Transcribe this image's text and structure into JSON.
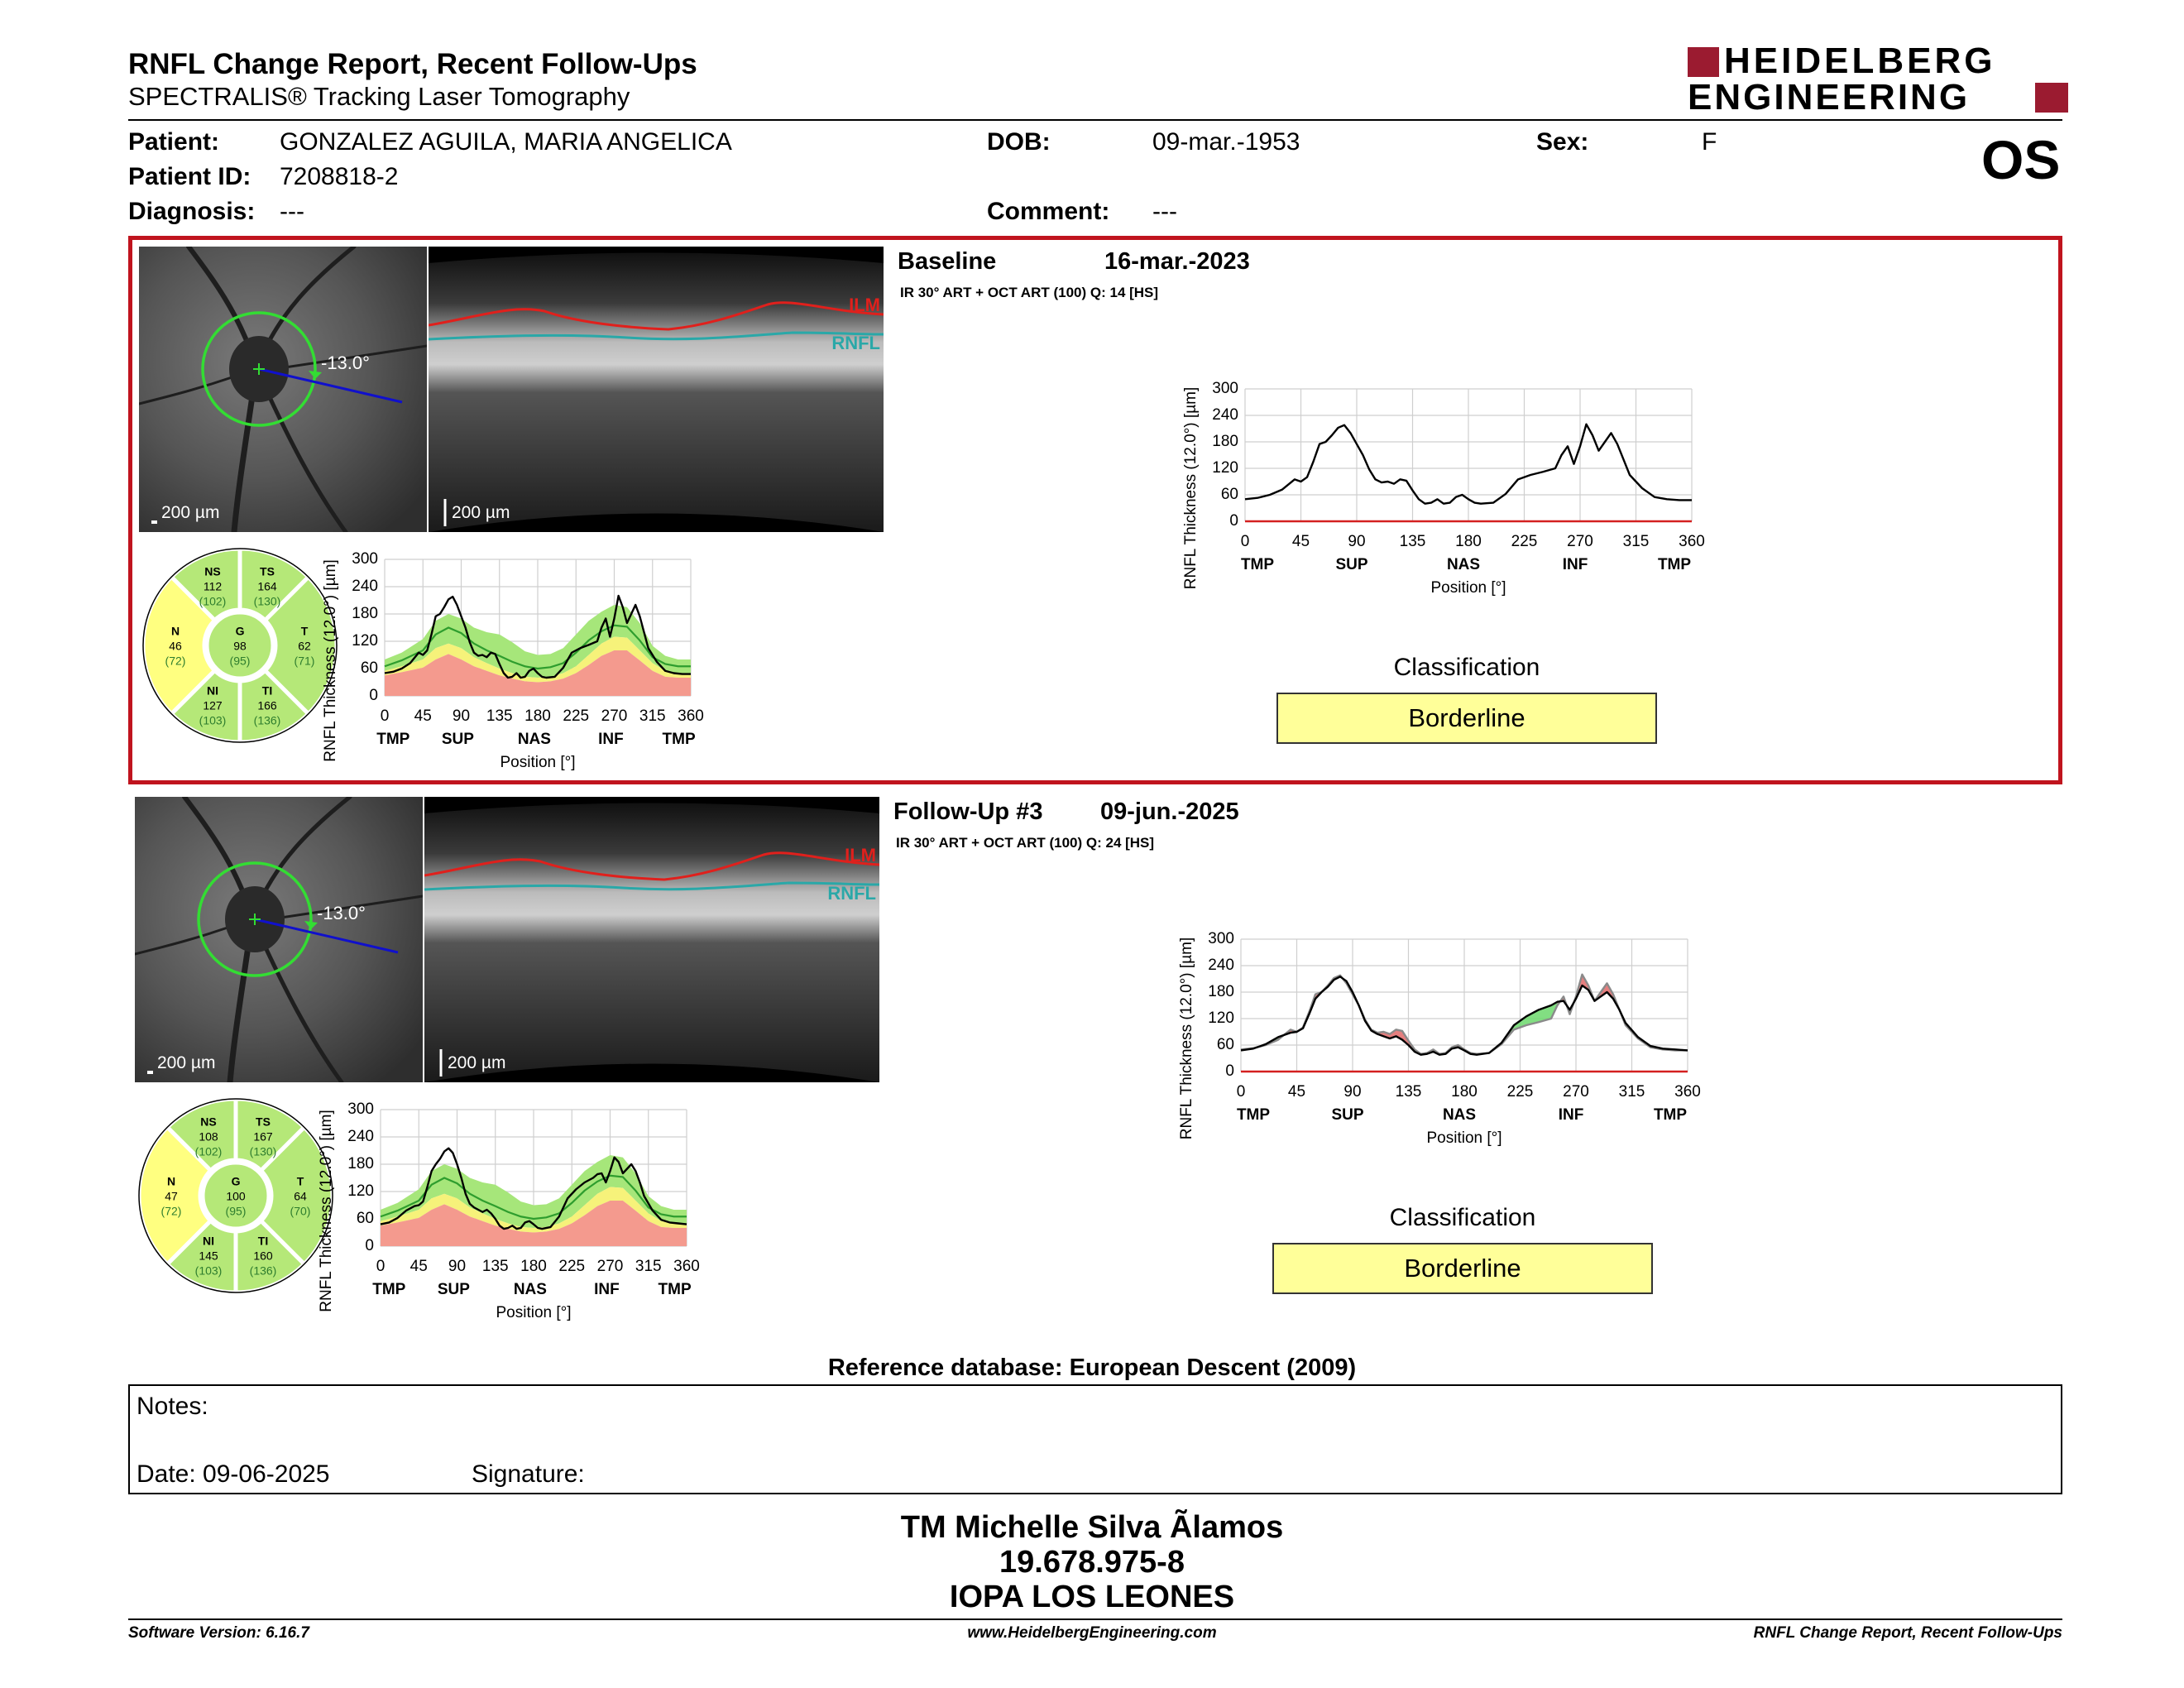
{
  "header": {
    "title": "RNFL Change Report, Recent Follow-Ups",
    "subtitle": "SPECTRALIS® Tracking Laser Tomography",
    "logo_line1": "HEIDELBERG",
    "logo_line2": "ENGINEERING",
    "eye": "OS"
  },
  "patient": {
    "patient_label": "Patient:",
    "patient_value": "GONZALEZ AGUILA, MARIA ANGELICA",
    "dob_label": "DOB:",
    "dob_value": "09-mar.-1953",
    "sex_label": "Sex:",
    "sex_value": "F",
    "id_label": "Patient ID:",
    "id_value": "7208818-2",
    "diagnosis_label": "Diagnosis:",
    "diagnosis_value": "---",
    "comment_label": "Comment:",
    "comment_value": "---"
  },
  "exams": [
    {
      "label": "Baseline",
      "date": "16-mar.-2023",
      "info": "IR 30° ART + OCT ART (100) Q: 14 [HS]",
      "angle": "-13.0°",
      "scale_fundus": "200 µm",
      "scale_bscan": "200 µm",
      "ilm": "ILM",
      "rnfl": "RNFL",
      "sectors": {
        "NS": {
          "label": "NS",
          "value": "112",
          "ref": "(102)"
        },
        "TS": {
          "label": "TS",
          "value": "164",
          "ref": "(130)"
        },
        "N": {
          "label": "N",
          "value": "46",
          "ref": "(72)"
        },
        "G": {
          "label": "G",
          "value": "98",
          "ref": "(95)"
        },
        "T": {
          "label": "T",
          "value": "62",
          "ref": "(71)"
        },
        "NI": {
          "label": "NI",
          "value": "127",
          "ref": "(103)"
        },
        "TI": {
          "label": "TI",
          "value": "166",
          "ref": "(136)"
        }
      },
      "classification_title": "Classification",
      "classification": "Borderline",
      "classification_color": "#ffff99"
    },
    {
      "label": "Follow-Up #3",
      "date": "09-jun.-2025",
      "info": "IR 30° ART + OCT ART (100) Q: 24 [HS]",
      "angle": "-13.0°",
      "scale_fundus": "200 µm",
      "scale_bscan": "200 µm",
      "ilm": "ILM",
      "rnfl": "RNFL",
      "sectors": {
        "NS": {
          "label": "NS",
          "value": "108",
          "ref": "(102)"
        },
        "TS": {
          "label": "TS",
          "value": "167",
          "ref": "(130)"
        },
        "N": {
          "label": "N",
          "value": "47",
          "ref": "(72)"
        },
        "G": {
          "label": "G",
          "value": "100",
          "ref": "(95)"
        },
        "T": {
          "label": "T",
          "value": "64",
          "ref": "(70)"
        },
        "NI": {
          "label": "NI",
          "value": "145",
          "ref": "(103)"
        },
        "TI": {
          "label": "TI",
          "value": "160",
          "ref": "(136)"
        }
      },
      "classification_title": "Classification",
      "classification": "Borderline",
      "classification_color": "#ffff99"
    }
  ],
  "chart_data": {
    "type": "line",
    "ylabel": "RNFL Thickness (12.0°) [µm]",
    "xlabel": "Position [°]",
    "xlim": [
      0,
      360
    ],
    "ylim": [
      0,
      300
    ],
    "xticks": [
      0,
      45,
      90,
      135,
      180,
      225,
      270,
      315,
      360
    ],
    "yticks": [
      0,
      60,
      120,
      180,
      240,
      300
    ],
    "region_labels": [
      "TMP",
      "SUP",
      "NAS",
      "INF",
      "TMP"
    ],
    "region_positions": [
      10,
      86,
      176,
      266,
      346
    ],
    "norm_bands": {
      "x": [
        0,
        20,
        45,
        60,
        75,
        90,
        105,
        120,
        135,
        150,
        165,
        180,
        195,
        210,
        225,
        240,
        255,
        270,
        285,
        300,
        315,
        330,
        345,
        360
      ],
      "red": [
        45,
        52,
        62,
        80,
        92,
        80,
        65,
        55,
        45,
        38,
        32,
        30,
        32,
        38,
        50,
        68,
        88,
        100,
        100,
        78,
        55,
        42,
        40,
        40
      ],
      "yellow": [
        55,
        65,
        80,
        105,
        115,
        105,
        85,
        72,
        60,
        50,
        42,
        40,
        42,
        50,
        65,
        90,
        115,
        130,
        128,
        100,
        72,
        55,
        50,
        50
      ],
      "green": [
        80,
        95,
        125,
        165,
        180,
        170,
        150,
        140,
        135,
        118,
        98,
        90,
        92,
        105,
        135,
        165,
        185,
        200,
        195,
        160,
        110,
        88,
        80,
        80
      ],
      "median": [
        65,
        78,
        100,
        135,
        150,
        138,
        115,
        100,
        88,
        75,
        65,
        60,
        63,
        72,
        95,
        122,
        142,
        155,
        152,
        122,
        85,
        70,
        65,
        65
      ]
    },
    "series": [
      {
        "name": "Baseline",
        "x": [
          0,
          10,
          20,
          30,
          40,
          45,
          50,
          55,
          60,
          65,
          70,
          75,
          80,
          85,
          90,
          95,
          100,
          105,
          110,
          115,
          120,
          125,
          130,
          135,
          140,
          145,
          150,
          155,
          160,
          165,
          170,
          175,
          180,
          185,
          190,
          200,
          210,
          220,
          230,
          240,
          250,
          255,
          260,
          265,
          270,
          275,
          280,
          285,
          290,
          295,
          300,
          305,
          310,
          320,
          330,
          340,
          350,
          360
        ],
        "y": [
          50,
          53,
          60,
          72,
          95,
          90,
          100,
          135,
          175,
          180,
          195,
          212,
          218,
          200,
          175,
          150,
          118,
          95,
          88,
          90,
          85,
          95,
          92,
          70,
          50,
          40,
          42,
          50,
          40,
          42,
          55,
          60,
          50,
          42,
          40,
          42,
          62,
          95,
          105,
          112,
          120,
          150,
          170,
          130,
          170,
          220,
          195,
          160,
          180,
          200,
          175,
          140,
          105,
          75,
          55,
          50,
          48,
          48
        ]
      },
      {
        "name": "Follow-Up #3",
        "x": [
          0,
          10,
          20,
          30,
          40,
          45,
          50,
          55,
          60,
          65,
          70,
          75,
          80,
          85,
          90,
          95,
          100,
          105,
          110,
          115,
          120,
          125,
          130,
          135,
          140,
          145,
          150,
          155,
          160,
          165,
          170,
          175,
          180,
          185,
          190,
          200,
          210,
          220,
          230,
          240,
          250,
          255,
          260,
          265,
          270,
          275,
          280,
          285,
          290,
          295,
          300,
          305,
          310,
          320,
          330,
          340,
          350,
          360
        ],
        "y": [
          48,
          52,
          62,
          78,
          88,
          90,
          98,
          130,
          165,
          180,
          192,
          208,
          215,
          205,
          180,
          150,
          115,
          93,
          85,
          80,
          75,
          80,
          72,
          60,
          45,
          38,
          40,
          45,
          38,
          40,
          52,
          55,
          48,
          40,
          38,
          42,
          65,
          105,
          125,
          140,
          150,
          158,
          160,
          140,
          165,
          195,
          185,
          160,
          170,
          180,
          165,
          140,
          110,
          78,
          58,
          52,
          50,
          48
        ]
      }
    ]
  },
  "footer": {
    "reference": "Reference database: European Descent (2009)",
    "notes_label": "Notes:",
    "date_label": "Date: 09-06-2025",
    "signature_label": "Signature:",
    "tech_name": "TM Michelle Silva Ãlamos",
    "tech_id": "19.678.975-8",
    "institution": "IOPA LOS LEONES",
    "software": "Software Version: 6.16.7",
    "website": "www.HeidelbergEngineering.com",
    "report_name": "RNFL Change Report, Recent Follow-Ups"
  }
}
